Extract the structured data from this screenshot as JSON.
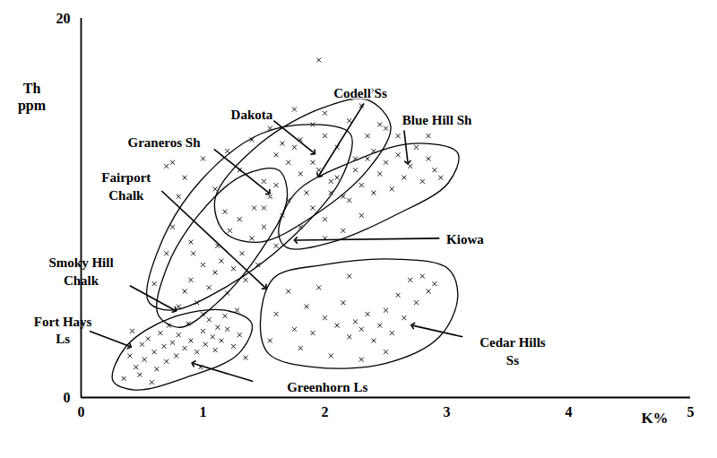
{
  "chart_data": {
    "type": "scatter",
    "x_label": "K%",
    "y_label": "Th\nppm",
    "xlim": [
      0,
      5
    ],
    "xticks": [
      0,
      1,
      2,
      3,
      4,
      5
    ],
    "ylim": [
      0,
      20
    ],
    "yticks": [
      0,
      20
    ],
    "grid": false,
    "color": "#000000",
    "marker": "x",
    "x": [
      0.35,
      0.4,
      0.45,
      0.5,
      0.52,
      0.55,
      0.6,
      0.62,
      0.65,
      0.68,
      0.7,
      0.72,
      0.75,
      0.78,
      0.8,
      0.85,
      0.88,
      0.9,
      0.95,
      1.0,
      1.02,
      1.05,
      1.08,
      1.1,
      1.12,
      1.15,
      1.2,
      1.25,
      1.3,
      1.35,
      0.42,
      0.58,
      0.48,
      1.18,
      0.98,
      0.8,
      0.85,
      0.9,
      0.95,
      1.0,
      1.05,
      1.1,
      1.12,
      1.15,
      1.2,
      1.22,
      1.25,
      1.3,
      1.32,
      1.35,
      1.4,
      1.42,
      1.45,
      1.5,
      1.55,
      1.6,
      1.0,
      1.18,
      0.92,
      1.28,
      0.6,
      0.7,
      0.75,
      0.8,
      0.85,
      0.9,
      0.7,
      1.0,
      1.1,
      1.2,
      1.3,
      1.4,
      1.5,
      1.6,
      1.7,
      1.75,
      1.8,
      1.9,
      2.0,
      1.65,
      1.55,
      0.75,
      1.5,
      1.6,
      1.7,
      1.8,
      1.85,
      1.9,
      1.95,
      2.0,
      2.05,
      2.1,
      2.2,
      2.25,
      2.3,
      2.35,
      2.4,
      2.45,
      1.95,
      1.75,
      2.15,
      1.65,
      1.8,
      1.9,
      2.0,
      2.05,
      2.1,
      2.15,
      2.2,
      2.25,
      2.3,
      2.35,
      2.4,
      2.45,
      2.5,
      2.55,
      2.6,
      2.65,
      2.7,
      2.75,
      2.8,
      2.85,
      2.9,
      2.95,
      2.6,
      2.5,
      2.0,
      2.3,
      2.85,
      2.4,
      1.55,
      1.6,
      1.7,
      1.75,
      1.8,
      1.85,
      1.9,
      2.0,
      2.05,
      2.1,
      2.15,
      2.2,
      2.25,
      2.3,
      2.35,
      2.4,
      2.45,
      2.5,
      2.55,
      2.6,
      2.65,
      2.7,
      2.75,
      2.8,
      2.85,
      2.9,
      2.3,
      2.2,
      1.95,
      2.5
    ],
    "values": [
      1.0,
      2.2,
      1.6,
      2.8,
      2.0,
      3.1,
      2.4,
      1.5,
      3.4,
      2.7,
      1.9,
      3.8,
      2.9,
      2.2,
      3.3,
      2.6,
      3.9,
      3.0,
      2.4,
      3.5,
      2.8,
      4.1,
      3.2,
      2.5,
      3.7,
      3.0,
      3.6,
      2.7,
      3.3,
      2.1,
      3.5,
      0.8,
      1.2,
      4.3,
      1.6,
      4.8,
      5.6,
      6.2,
      5.0,
      7.0,
      5.8,
      6.6,
      8.0,
      7.2,
      5.5,
      8.8,
      6.8,
      9.4,
      7.6,
      6.2,
      8.4,
      10.0,
      7.0,
      9.0,
      10.6,
      8.0,
      4.4,
      9.8,
      7.6,
      4.6,
      6.0,
      7.6,
      9.0,
      10.6,
      11.6,
      8.2,
      12.2,
      12.6,
      11.0,
      13.0,
      12.0,
      13.6,
      11.4,
      12.8,
      10.4,
      13.2,
      11.8,
      12.4,
      13.8,
      9.6,
      14.2,
      12.4,
      10.0,
      11.2,
      12.4,
      13.6,
      10.8,
      14.4,
      12.0,
      15.0,
      11.4,
      13.2,
      14.6,
      12.6,
      15.4,
      13.8,
      16.2,
      14.4,
      17.8,
      15.2,
      10.6,
      13.4,
      9.0,
      10.0,
      9.4,
      10.8,
      11.6,
      8.8,
      10.4,
      12.0,
      11.2,
      12.6,
      10.8,
      11.8,
      12.4,
      11.0,
      12.8,
      11.6,
      12.2,
      13.2,
      11.4,
      12.6,
      12.0,
      11.6,
      13.8,
      14.2,
      8.4,
      9.6,
      13.8,
      13.0,
      3.0,
      4.4,
      5.6,
      3.6,
      2.6,
      4.8,
      3.4,
      4.2,
      2.2,
      3.8,
      5.0,
      3.2,
      4.0,
      3.6,
      4.4,
      3.0,
      3.8,
      4.6,
      3.4,
      5.4,
      4.2,
      6.2,
      5.0,
      6.4,
      5.6,
      6.0,
      2.0,
      6.4,
      5.8,
      2.4
    ],
    "regions": [
      [
        [
          0.55,
          5.1
        ],
        [
          0.66,
          8.2
        ],
        [
          0.99,
          11.5
        ],
        [
          1.47,
          13.9
        ],
        [
          1.91,
          14.4
        ],
        [
          2.21,
          13.9
        ],
        [
          2.13,
          11.5
        ],
        [
          1.69,
          8.2
        ],
        [
          1.18,
          5.8
        ],
        [
          0.74,
          4.6
        ]
      ],
      [
        [
          1.1,
          10.5
        ],
        [
          1.47,
          13.4
        ],
        [
          1.99,
          15.3
        ],
        [
          2.35,
          15.7
        ],
        [
          2.54,
          14.3
        ],
        [
          2.35,
          12.0
        ],
        [
          1.91,
          9.6
        ],
        [
          1.47,
          8.2
        ],
        [
          1.18,
          8.7
        ]
      ],
      [
        [
          1.62,
          8.7
        ],
        [
          1.76,
          10.8
        ],
        [
          2.21,
          12.4
        ],
        [
          2.72,
          13.4
        ],
        [
          3.09,
          12.9
        ],
        [
          3.01,
          11.3
        ],
        [
          2.57,
          9.6
        ],
        [
          2.06,
          8.2
        ],
        [
          1.69,
          7.9
        ]
      ],
      [
        [
          1.47,
          3.9
        ],
        [
          1.58,
          6.3
        ],
        [
          1.99,
          7.0
        ],
        [
          2.57,
          7.3
        ],
        [
          3.01,
          6.8
        ],
        [
          3.09,
          5.3
        ],
        [
          2.94,
          3.2
        ],
        [
          2.5,
          1.8
        ],
        [
          1.91,
          1.6
        ],
        [
          1.54,
          2.3
        ]
      ],
      [
        [
          0.26,
          0.9
        ],
        [
          0.37,
          2.7
        ],
        [
          0.74,
          4.2
        ],
        [
          1.18,
          4.6
        ],
        [
          1.4,
          3.9
        ],
        [
          1.29,
          2.3
        ],
        [
          0.88,
          1.1
        ],
        [
          0.44,
          0.4
        ]
      ],
      [
        [
          0.63,
          4.4
        ],
        [
          0.7,
          6.8
        ],
        [
          0.96,
          9.6
        ],
        [
          1.32,
          11.7
        ],
        [
          1.62,
          12.0
        ],
        [
          1.69,
          10.5
        ],
        [
          1.47,
          7.7
        ],
        [
          1.1,
          4.9
        ],
        [
          0.81,
          3.7
        ]
      ]
    ],
    "annotations": [
      {
        "text": "Dakota",
        "x": 1.4,
        "y": 15.0,
        "from": [
          1.58,
          14.6
        ],
        "to": [
          1.91,
          12.9
        ]
      },
      {
        "text": "Codell Ss",
        "x": 2.29,
        "y": 16.1,
        "from": [
          2.32,
          15.5
        ],
        "to": [
          1.95,
          11.7
        ]
      },
      {
        "text": "Blue Hill Sh",
        "x": 2.92,
        "y": 14.7,
        "from": [
          2.65,
          14.1
        ],
        "to": [
          2.68,
          12.4
        ]
      },
      {
        "text": "Graneros Sh",
        "x": 0.68,
        "y": 13.5,
        "from": [
          1.09,
          13.1
        ],
        "to": [
          1.54,
          10.8
        ]
      },
      {
        "text": "Fairport\nChalk",
        "x": 0.37,
        "y": 11.2,
        "from": [
          0.66,
          10.9
        ],
        "to": [
          1.51,
          5.8
        ]
      },
      {
        "text": "Kiowa",
        "x": 3.15,
        "y": 8.4,
        "from": [
          2.94,
          8.4
        ],
        "to": [
          1.76,
          8.3
        ]
      },
      {
        "text": "Smoky Hill\nChalk",
        "x": 0.0,
        "y": 6.7,
        "from": [
          0.4,
          5.9
        ],
        "to": [
          0.77,
          4.6
        ]
      },
      {
        "text": "Fort Hays\nLs",
        "x": -0.15,
        "y": 3.6,
        "from": [
          0.07,
          3.5
        ],
        "to": [
          0.4,
          2.7
        ]
      },
      {
        "text": "Greenhorn Ls",
        "x": 2.02,
        "y": 0.6,
        "from": [
          1.41,
          0.85
        ],
        "to": [
          0.92,
          1.8
        ]
      },
      {
        "text": "Cedar Hills\nSs",
        "x": 3.54,
        "y": 2.5,
        "from": [
          3.13,
          3.2
        ],
        "to": [
          2.72,
          3.8
        ]
      }
    ]
  }
}
